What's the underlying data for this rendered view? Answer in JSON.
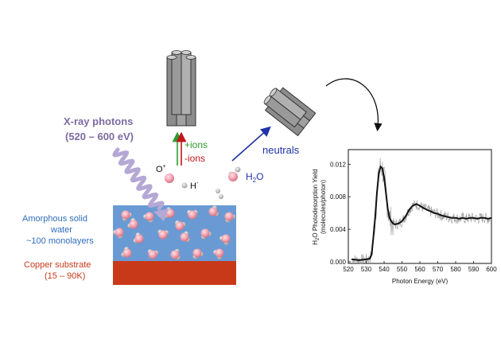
{
  "labels": {
    "xray_line1": "X-ray photons",
    "xray_line2": "(520 – 600 eV)",
    "plus_ions": "+ions",
    "minus_ions": "-ions",
    "o_plus": "O",
    "o_plus_sup": "+",
    "h_minus": "H",
    "h_minus_sup": "-",
    "water_h": "H",
    "water_sub": "2",
    "water_o": "O",
    "neutrals": "neutrals",
    "ice_line1": "Amorphous solid",
    "ice_line2": "water",
    "ice_line3": "~100 monolayers",
    "substrate_line1": "Copper substrate",
    "substrate_line2": "(15 – 90K)"
  },
  "colors": {
    "xray_text": "#7d6aa3",
    "wave": "#b5a8d4",
    "ice": "#6a9ad4",
    "copper": "#c8391a",
    "ice_text": "#2f6ebb",
    "substrate_text": "#c8391a",
    "plus_ions": "#2e9a2e",
    "minus_ions": "#c0171b",
    "neutrals": "#2033a8",
    "detector": "#8c8c8c",
    "molecule": "#f0a0ae",
    "hydrogen": "#bdbdbd"
  },
  "chart_data": {
    "type": "line",
    "ylabel_line1": "H",
    "ylabel_sub": "2",
    "ylabel_rest": "O Photodesorption Yield",
    "ylabel_line2": "(molecules/photon)",
    "xlabel": "Photon Energy (eV)",
    "xlim": [
      520,
      600
    ],
    "ylim": [
      -0.0002,
      0.0138
    ],
    "x_ticks": [
      520,
      530,
      540,
      550,
      560,
      570,
      580,
      590,
      600
    ],
    "y_ticks": [
      0.0,
      0.004,
      0.008,
      0.012
    ],
    "y_tick_labels": [
      "0.000",
      "0.004",
      "0.008",
      "0.012"
    ],
    "series": [
      {
        "x": [
          522,
          526,
          530,
          532,
          533,
          534,
          535,
          536,
          537,
          538,
          539,
          540,
          541,
          542,
          543,
          544,
          545,
          546,
          548,
          550,
          552,
          554,
          556,
          558,
          560,
          562,
          564,
          566,
          568,
          570,
          572,
          574,
          576,
          578,
          580,
          582,
          584,
          586,
          588,
          590,
          592,
          594,
          596,
          598,
          600
        ],
        "y": [
          0.0003,
          0.0002,
          0.0003,
          0.0004,
          0.0009,
          0.003,
          0.0055,
          0.0085,
          0.0108,
          0.0117,
          0.0115,
          0.0104,
          0.0085,
          0.0066,
          0.0054,
          0.005,
          0.0047,
          0.0046,
          0.0047,
          0.005,
          0.0056,
          0.0064,
          0.0069,
          0.0071,
          0.0069,
          0.0066,
          0.0064,
          0.0062,
          0.006,
          0.0059,
          0.0057,
          0.0056,
          0.0055,
          0.0054,
          0.0054,
          0.0053,
          0.0054,
          0.0053,
          0.0054,
          0.0054,
          0.0053,
          0.0054,
          0.0054,
          0.0053,
          0.0054
        ]
      }
    ]
  }
}
